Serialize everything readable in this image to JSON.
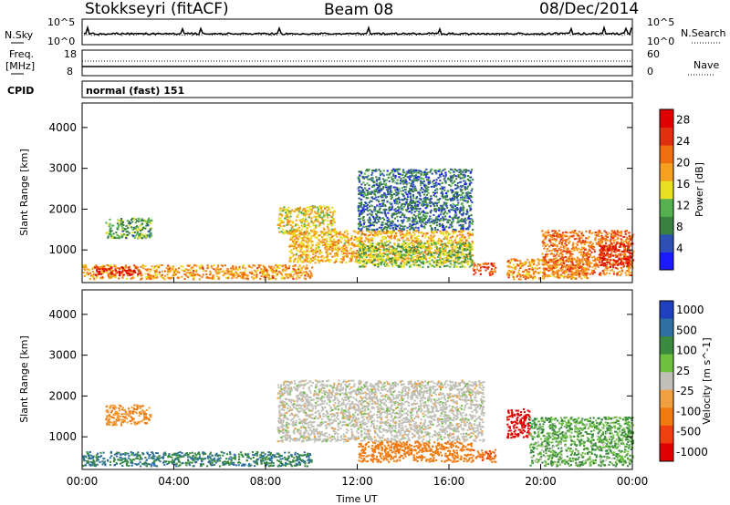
{
  "header": {
    "station": "Stokkseyri (fitACF)",
    "beam": "Beam 08",
    "date": "08/Dec/2014"
  },
  "noise_panel": {
    "left_label": "N.Sky",
    "left_ticks": [
      "10^5",
      "10^0"
    ],
    "right_label": "N.Search",
    "right_ticks": [
      "10^5",
      "10^0"
    ]
  },
  "freq_panel": {
    "left_label_1": "Freq.",
    "left_label_2": "[MHz]",
    "left_ticks": [
      "18",
      "8"
    ],
    "right_label": "Nave",
    "right_ticks": [
      "60",
      "0"
    ]
  },
  "cpid": {
    "label": "CPID",
    "value": "normal (fast) 151"
  },
  "colors": {
    "power": [
      "#1a1aff",
      "#2e4fb5",
      "#3a8040",
      "#55b050",
      "#e8e020",
      "#f5a020",
      "#f07010",
      "#e03010",
      "#e00000"
    ],
    "velocity_pos": [
      "#2040c0",
      "#3070a0",
      "#3a8a40",
      "#70c040"
    ],
    "velocity_gs": "#c0c0b8",
    "velocity_neg": [
      "#f0a040",
      "#f07a10",
      "#f04010",
      "#e00000"
    ]
  },
  "chart_data": [
    {
      "type": "heatmap",
      "name": "power",
      "xlabel": "",
      "ylabel": "Slant Range [km]",
      "y_ticks": [
        "1000",
        "2000",
        "3000",
        "4000"
      ],
      "ylim": [
        200,
        4600
      ],
      "colorbar_label": "Power [dB]",
      "colorbar_ticks": [
        "4",
        "8",
        "12",
        "16",
        "20",
        "24",
        "28"
      ],
      "colorbar_range": [
        0,
        30
      ],
      "regions": [
        {
          "t0": 0.0,
          "t1": 10.0,
          "r0": 300,
          "r1": 650,
          "val": 20
        },
        {
          "t0": 0.5,
          "t1": 2.5,
          "r0": 400,
          "r1": 600,
          "val": 28
        },
        {
          "t0": 1.0,
          "t1": 3.0,
          "r0": 1300,
          "r1": 1800,
          "val": 10
        },
        {
          "t0": 8.5,
          "t1": 11.0,
          "r0": 1400,
          "r1": 2100,
          "val": 16
        },
        {
          "t0": 9.0,
          "t1": 17.0,
          "r0": 700,
          "r1": 1500,
          "val": 18
        },
        {
          "t0": 12.0,
          "t1": 17.0,
          "r0": 600,
          "r1": 1200,
          "val": 12
        },
        {
          "t0": 12.0,
          "t1": 17.0,
          "r0": 1500,
          "r1": 3000,
          "val": 6
        },
        {
          "t0": 17.0,
          "t1": 18.0,
          "r0": 400,
          "r1": 700,
          "val": 24
        },
        {
          "t0": 18.5,
          "t1": 22.0,
          "r0": 300,
          "r1": 800,
          "val": 20
        },
        {
          "t0": 20.0,
          "t1": 24.0,
          "r0": 400,
          "r1": 1500,
          "val": 22
        },
        {
          "t0": 22.5,
          "t1": 24.0,
          "r0": 600,
          "r1": 1200,
          "val": 28
        }
      ]
    },
    {
      "type": "heatmap",
      "name": "velocity",
      "xlabel": "Time UT",
      "x_ticks": [
        "00:00",
        "04:00",
        "08:00",
        "12:00",
        "16:00",
        "20:00",
        "00:00"
      ],
      "xlim": [
        0,
        24
      ],
      "ylabel": "Slant Range [km]",
      "y_ticks": [
        "1000",
        "2000",
        "3000",
        "4000"
      ],
      "ylim": [
        200,
        4600
      ],
      "colorbar_label": "Velocity [m s^-1]",
      "colorbar_ticks": [
        "1000",
        "500",
        "100",
        "25",
        "-25",
        "-100",
        "-500",
        "-1000"
      ],
      "regions": [
        {
          "t0": 0.0,
          "t1": 10.0,
          "r0": 300,
          "r1": 650,
          "val": 100
        },
        {
          "t0": 8.5,
          "t1": 17.5,
          "r0": 900,
          "r1": 2400,
          "val": 0
        },
        {
          "t0": 12.0,
          "t1": 17.0,
          "r0": 400,
          "r1": 900,
          "val": -200
        },
        {
          "t0": 17.0,
          "t1": 18.0,
          "r0": 400,
          "r1": 700,
          "val": -300
        },
        {
          "t0": 18.5,
          "t1": 19.5,
          "r0": 1000,
          "r1": 1700,
          "val": -1000
        },
        {
          "t0": 19.5,
          "t1": 24.0,
          "r0": 300,
          "r1": 1500,
          "val": 50
        },
        {
          "t0": 1.0,
          "t1": 3.0,
          "r0": 1300,
          "r1": 1800,
          "val": -100
        }
      ]
    }
  ]
}
